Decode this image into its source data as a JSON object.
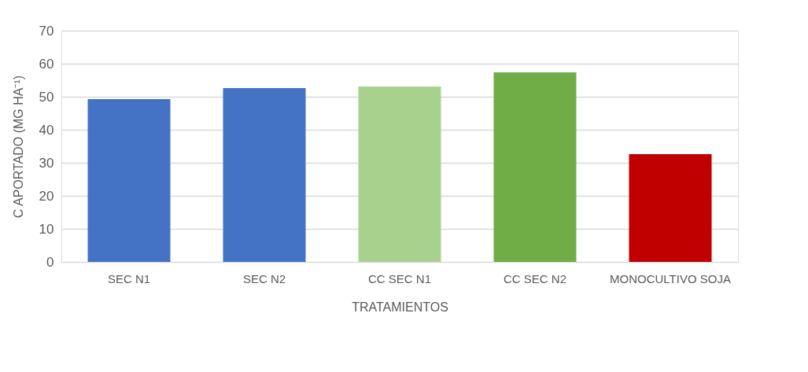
{
  "chart_data": {
    "type": "bar",
    "xlabel": "TRATAMIENTOS",
    "ylabel": "C APORTADO (MG HA⁻¹)",
    "categories": [
      "SEC N1",
      "SEC N2",
      "CC SEC N1",
      "CC SEC N2",
      "MONOCULTIVO SOJA"
    ],
    "values": [
      49.3,
      52.6,
      53.1,
      57.4,
      32.6
    ],
    "colors": [
      "#4472c4",
      "#4472c4",
      "#a9d18e",
      "#70ad47",
      "#c00000"
    ],
    "ylim": [
      0,
      70
    ],
    "yticks": [
      0,
      10,
      20,
      30,
      40,
      50,
      60,
      70
    ],
    "grid": "y"
  }
}
